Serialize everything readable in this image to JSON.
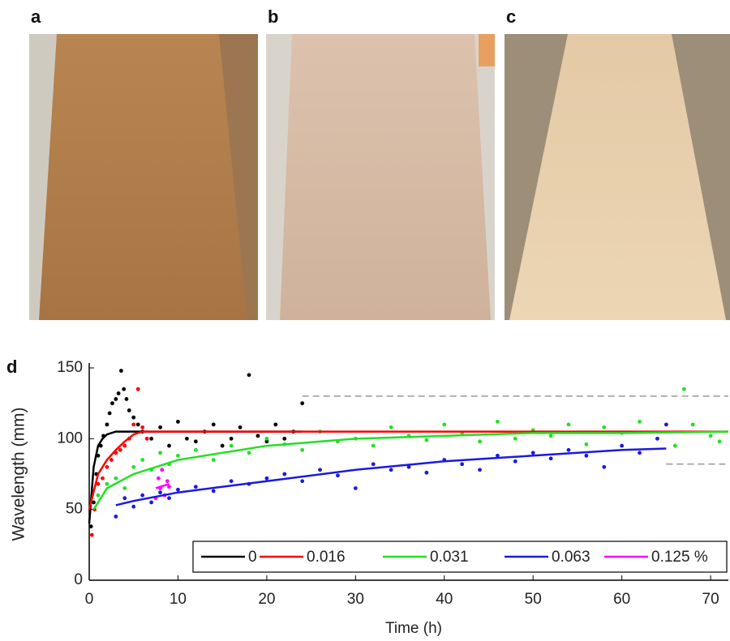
{
  "panels": {
    "a": "a",
    "b": "b",
    "c": "c"
  },
  "chart_data": {
    "type": "scatter",
    "label": "d",
    "xlabel": "Time (h)",
    "ylabel": "Wavelength (mm)",
    "xlim": [
      0,
      72
    ],
    "ylim": [
      0,
      150
    ],
    "xticks": [
      0,
      10,
      20,
      30,
      40,
      50,
      60,
      70
    ],
    "yticks": [
      0,
      50,
      100,
      150
    ],
    "reference_lines": [
      {
        "value": 130,
        "from": 24
      },
      {
        "value": 82,
        "from": 65
      }
    ],
    "series": [
      {
        "name": "0",
        "color": "#000000",
        "x": [
          0.2,
          0.5,
          0.8,
          1,
          1.3,
          1.6,
          2,
          2.3,
          2.6,
          3,
          3.3,
          3.6,
          3.9,
          4.2,
          4.5,
          5,
          5.5,
          6,
          7,
          8,
          9,
          10,
          11,
          12,
          13,
          14,
          15,
          16,
          17,
          18,
          19,
          20,
          21,
          22,
          23,
          24
        ],
        "values": [
          38,
          55,
          75,
          88,
          95,
          102,
          110,
          118,
          125,
          128,
          132,
          148,
          135,
          128,
          120,
          115,
          110,
          105,
          100,
          108,
          95,
          112,
          100,
          98,
          105,
          110,
          95,
          100,
          108,
          145,
          102,
          98,
          110,
          100,
          105,
          125
        ],
        "fit_x": [
          0,
          0.5,
          1,
          1.5,
          2,
          3,
          4,
          6,
          10,
          24
        ],
        "fit_values": [
          40,
          80,
          95,
          100,
          103,
          105,
          105,
          105,
          105,
          105
        ]
      },
      {
        "name": "0.016",
        "color": "#ff0000",
        "x": [
          0.3,
          0.6,
          1,
          1.5,
          2,
          2.5,
          3,
          3.5,
          4,
          4.5,
          5,
          5.5,
          6,
          6.5
        ],
        "values": [
          32,
          50,
          68,
          72,
          80,
          85,
          90,
          92,
          95,
          100,
          110,
          135,
          108,
          100
        ],
        "fit_x": [
          0,
          1,
          2,
          3,
          4,
          5,
          6,
          72
        ],
        "fit_values": [
          50,
          75,
          85,
          92,
          98,
          103,
          105,
          105
        ]
      },
      {
        "name": "0.031",
        "color": "#22e022",
        "x": [
          1,
          2,
          3,
          4,
          5,
          6,
          7,
          8,
          9,
          10,
          12,
          14,
          16,
          18,
          20,
          22,
          24,
          26,
          28,
          30,
          32,
          34,
          36,
          38,
          40,
          42,
          44,
          46,
          48,
          50,
          52,
          54,
          56,
          58,
          60,
          62,
          64,
          66,
          67,
          68,
          70,
          71
        ],
        "values": [
          60,
          68,
          72,
          65,
          80,
          85,
          78,
          90,
          82,
          88,
          92,
          85,
          95,
          90,
          100,
          96,
          92,
          105,
          98,
          100,
          95,
          108,
          102,
          99,
          110,
          104,
          98,
          112,
          100,
          106,
          102,
          110,
          96,
          108,
          104,
          112,
          100,
          95,
          135,
          110,
          102,
          98
        ],
        "fit_x": [
          0.5,
          2,
          5,
          10,
          20,
          30,
          40,
          50,
          60,
          72
        ],
        "fit_values": [
          50,
          65,
          75,
          85,
          95,
          100,
          102,
          104,
          104,
          105
        ]
      },
      {
        "name": "0.063",
        "color": "#1a1ae0",
        "x": [
          3,
          4,
          5,
          6,
          7,
          8,
          9,
          10,
          12,
          14,
          16,
          18,
          20,
          22,
          24,
          26,
          28,
          30,
          32,
          34,
          36,
          38,
          40,
          42,
          44,
          46,
          48,
          50,
          52,
          54,
          56,
          58,
          60,
          62,
          64,
          65
        ],
        "values": [
          45,
          58,
          52,
          60,
          55,
          62,
          58,
          64,
          66,
          63,
          70,
          68,
          72,
          75,
          70,
          78,
          74,
          65,
          82,
          78,
          80,
          76,
          85,
          82,
          78,
          88,
          84,
          90,
          86,
          92,
          88,
          80,
          95,
          90,
          100,
          110
        ],
        "fit_x": [
          3,
          5,
          10,
          20,
          30,
          40,
          50,
          60,
          65
        ],
        "fit_values": [
          53,
          56,
          62,
          70,
          78,
          84,
          88,
          92,
          93
        ]
      },
      {
        "name": "0.125 %",
        "color": "#ff00ff",
        "x": [
          7.5,
          7.8,
          8,
          8.2,
          8.5,
          8.8,
          9
        ],
        "values": [
          58,
          72,
          65,
          78,
          60,
          70,
          66
        ],
        "fit_x": [
          7.5,
          9
        ],
        "fit_values": [
          65,
          68
        ]
      }
    ]
  }
}
